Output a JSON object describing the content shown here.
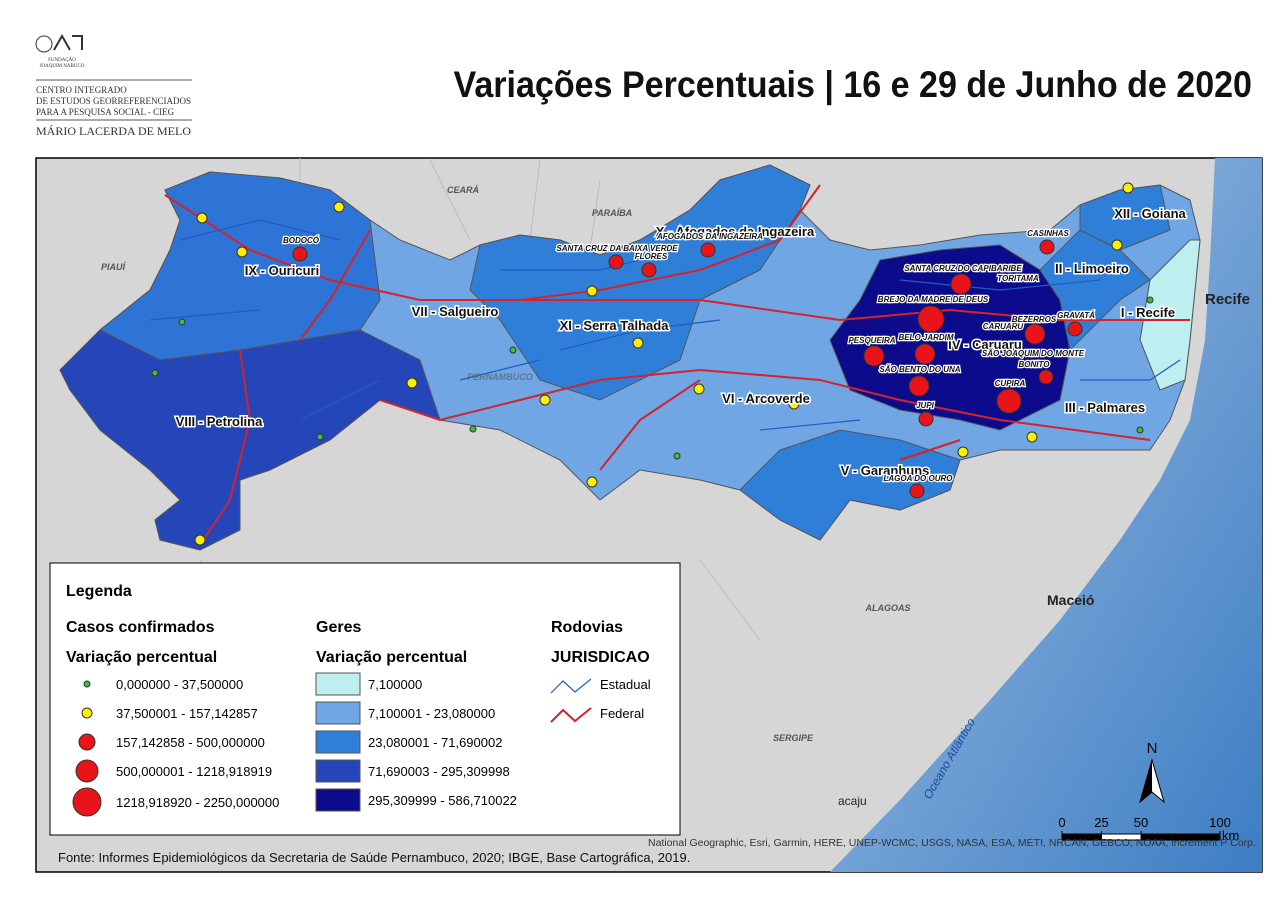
{
  "header": {
    "logo": {
      "org_line1": "FUNDAÇÃO",
      "org_line2": "JOAQUIM NABUCO",
      "center_lines": [
        "CENTRO INTEGRADO",
        "DE ESTUDOS GEORREFERENCIADOS",
        "PARA A PESQUISA SOCIAL - CIEG"
      ],
      "name": "MÁRIO LACERDA DE MELO"
    },
    "title": "Variações Percentuais | 16 e 29 de Junho de 2020"
  },
  "map": {
    "states": [
      "CEARÁ",
      "PARAÍBA",
      "PIAUÍ",
      "PERNAMBUCO",
      "ALAGOAS",
      "SERGIPE"
    ],
    "places": [
      "Recife",
      "Maceió",
      "acaju",
      "Oceano Atlântico"
    ],
    "regions": [
      "IX - Ouricuri",
      "VII - Salgueiro",
      "XI - Serra Talhada",
      "VIII - Petrolina",
      "VI - Arcoverde",
      "V - Garanhuns",
      "IV - Caruaru",
      "III - Palmares",
      "II - Limoeiro",
      "XII - Goiana",
      "I - Recife",
      "X - Afogados da Ingazeira"
    ],
    "municipalities": [
      "BODOCÓ",
      "AFOGADOS DA INGAZEIRA",
      "SANTA CRUZ DA BAIXA VERDE",
      "FLORES",
      "CASINHAS",
      "SANTA CRUZ DO CAPIBARIBE",
      "TORITAMA",
      "BREJO DA MADRE DE DEUS",
      "BELO JARDIM",
      "CARUARU",
      "BEZERROS",
      "GRAVATÁ",
      "PESQUEIRA",
      "SÃO JOAQUIM DO MONTE",
      "SÃO BENTO DO UNA",
      "BONITO",
      "CUPIRA",
      "JUPI",
      "LAGOA DO OURO"
    ]
  },
  "legend": {
    "title": "Legenda",
    "cases": {
      "title": "Casos confirmados",
      "subtitle": "Variação percentual",
      "classes": [
        "0,000000 - 37,500000",
        "37,500001 - 157,142857",
        "157,142858 - 500,000000",
        "500,000001 - 1218,918919",
        "1218,918920 - 2250,000000"
      ]
    },
    "geres": {
      "title": "Geres",
      "subtitle": "Variação percentual",
      "classes": [
        "7,100000",
        "7,100001 - 23,080000",
        "23,080001 - 71,690002",
        "71,690003 - 295,309998",
        "295,309999 - 586,710022"
      ]
    },
    "roads": {
      "title": "Rodovias",
      "subtitle": "JURISDICAO",
      "classes": [
        "Estadual",
        "Federal"
      ]
    }
  },
  "scale": {
    "ticks": [
      0,
      25,
      50,
      100
    ],
    "unit": "km",
    "north": "N"
  },
  "source": "Fonte: Informes Epidemiológicos da Secretaria de Saúde Pernambuco, 2020; IBGE, Base Cartográfica, 2019.",
  "attribution": "National Geographic, Esri, Garmin, HERE, UNEP-WCMC, USGS, NASA, ESA, METI, NRCAN, GEBCO, NOAA, increment P Corp."
}
